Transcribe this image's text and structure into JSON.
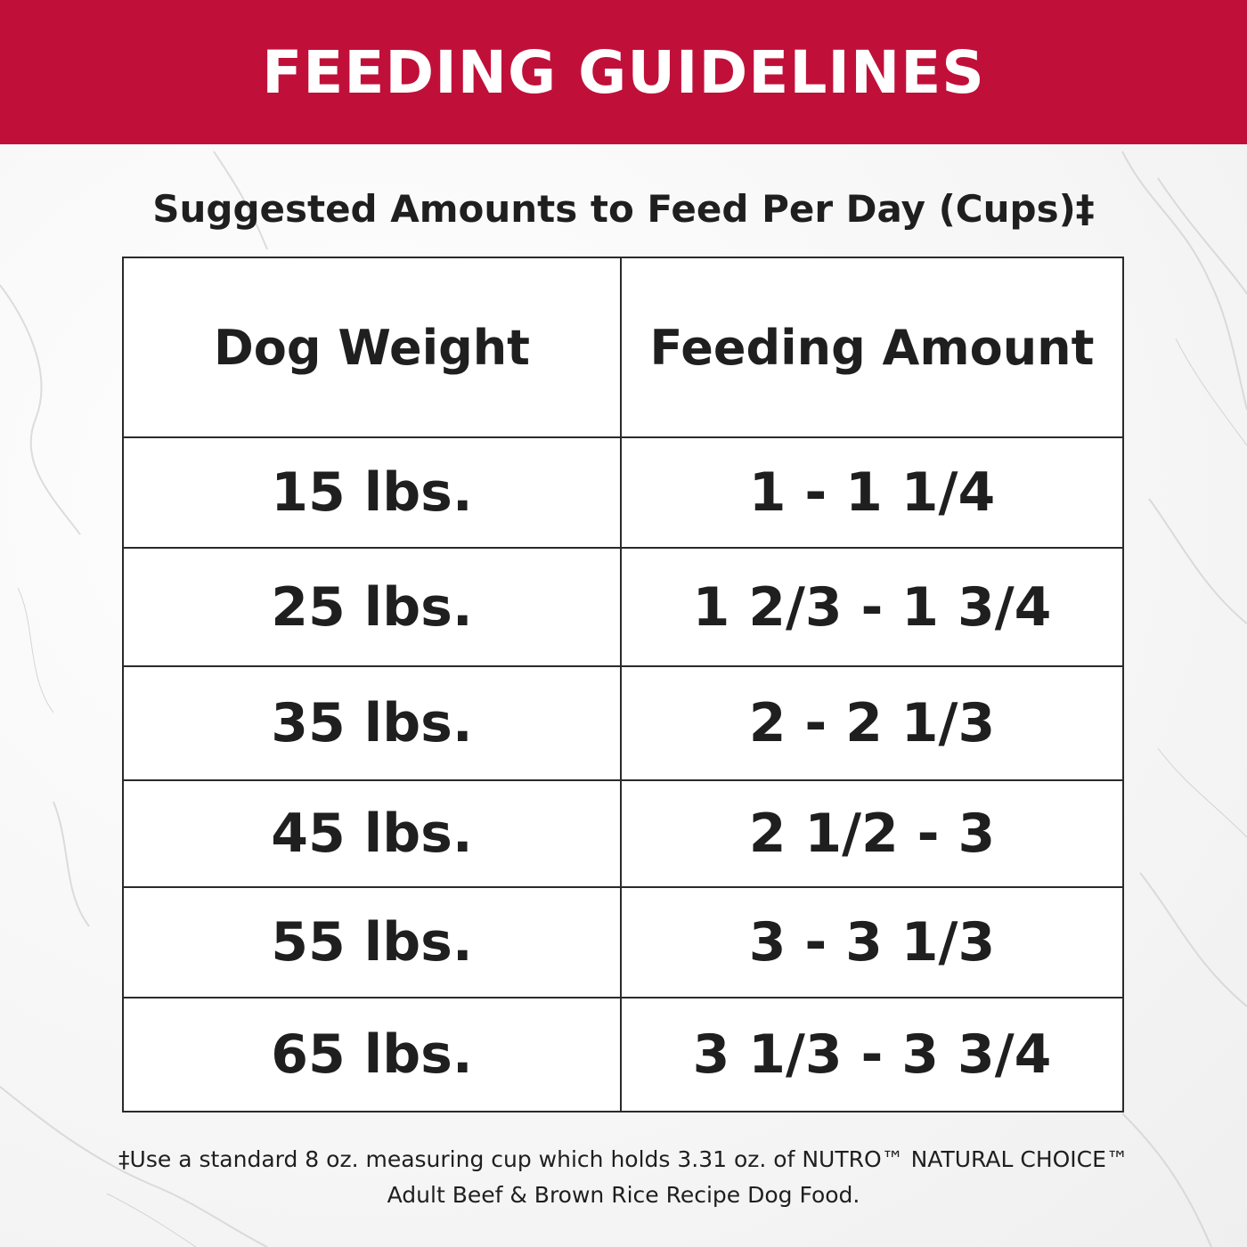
{
  "banner": {
    "title": "FEEDING GUIDELINES",
    "color": "#c0103a"
  },
  "subtitle": "Suggested Amounts to Feed Per Day (Cups)‡",
  "table": {
    "headers": [
      "Dog Weight",
      "Feeding Amount"
    ],
    "rows": [
      [
        "15 lbs.",
        "1 - 1 1/4"
      ],
      [
        "25 lbs.",
        "1 2/3 - 1 3/4"
      ],
      [
        "35 lbs.",
        "2 - 2 1/3"
      ],
      [
        "45 lbs.",
        "2 1/2 - 3"
      ],
      [
        "55 lbs.",
        "3 - 3 1/3"
      ],
      [
        "65 lbs.",
        "3 1/3 - 3 3/4"
      ]
    ]
  },
  "footnote": {
    "line1": "‡Use a standard 8 oz. measuring cup which holds 3.31 oz. of NUTRO™ NATURAL CHOICE™",
    "line2": "Adult Beef & Brown Rice Recipe Dog Food."
  }
}
